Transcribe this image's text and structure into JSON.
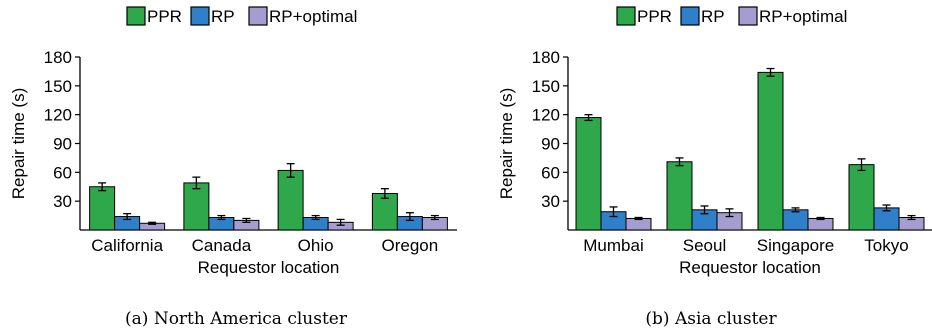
{
  "colors": {
    "PPR": "#2ea84a",
    "RP": "#2f80c8",
    "RP+optimal": "#a49dd0",
    "axis": "#000000"
  },
  "chart_data": [
    {
      "type": "bar",
      "caption": "(a) North America cluster",
      "xlabel": "Requestor location",
      "ylabel": "Repair time (s)",
      "ylim": [
        0,
        180
      ],
      "yticks": [
        30,
        60,
        90,
        120,
        150,
        180
      ],
      "legend_position": "top",
      "categories": [
        "California",
        "Canada",
        "Ohio",
        "Oregon"
      ],
      "series": [
        {
          "name": "PPR",
          "values": [
            45,
            49,
            62,
            38
          ],
          "errors": [
            4,
            6,
            7,
            5
          ]
        },
        {
          "name": "RP",
          "values": [
            14,
            13,
            13,
            14
          ],
          "errors": [
            3,
            2,
            2,
            4
          ]
        },
        {
          "name": "RP+optimal",
          "values": [
            7,
            10,
            8,
            13
          ],
          "errors": [
            1,
            2,
            3,
            2
          ]
        }
      ]
    },
    {
      "type": "bar",
      "caption": "(b) Asia cluster",
      "xlabel": "Requestor location",
      "ylabel": "Repair time (s)",
      "ylim": [
        0,
        180
      ],
      "yticks": [
        30,
        60,
        90,
        120,
        150,
        180
      ],
      "legend_position": "top",
      "categories": [
        "Mumbai",
        "Seoul",
        "Singapore",
        "Tokyo"
      ],
      "series": [
        {
          "name": "PPR",
          "values": [
            117,
            71,
            164,
            68
          ],
          "errors": [
            3,
            4,
            4,
            6
          ]
        },
        {
          "name": "RP",
          "values": [
            19,
            21,
            21,
            23
          ],
          "errors": [
            5,
            4,
            2,
            3
          ]
        },
        {
          "name": "RP+optimal",
          "values": [
            12,
            18,
            12,
            13
          ],
          "errors": [
            1,
            4,
            1,
            2
          ]
        }
      ]
    }
  ]
}
